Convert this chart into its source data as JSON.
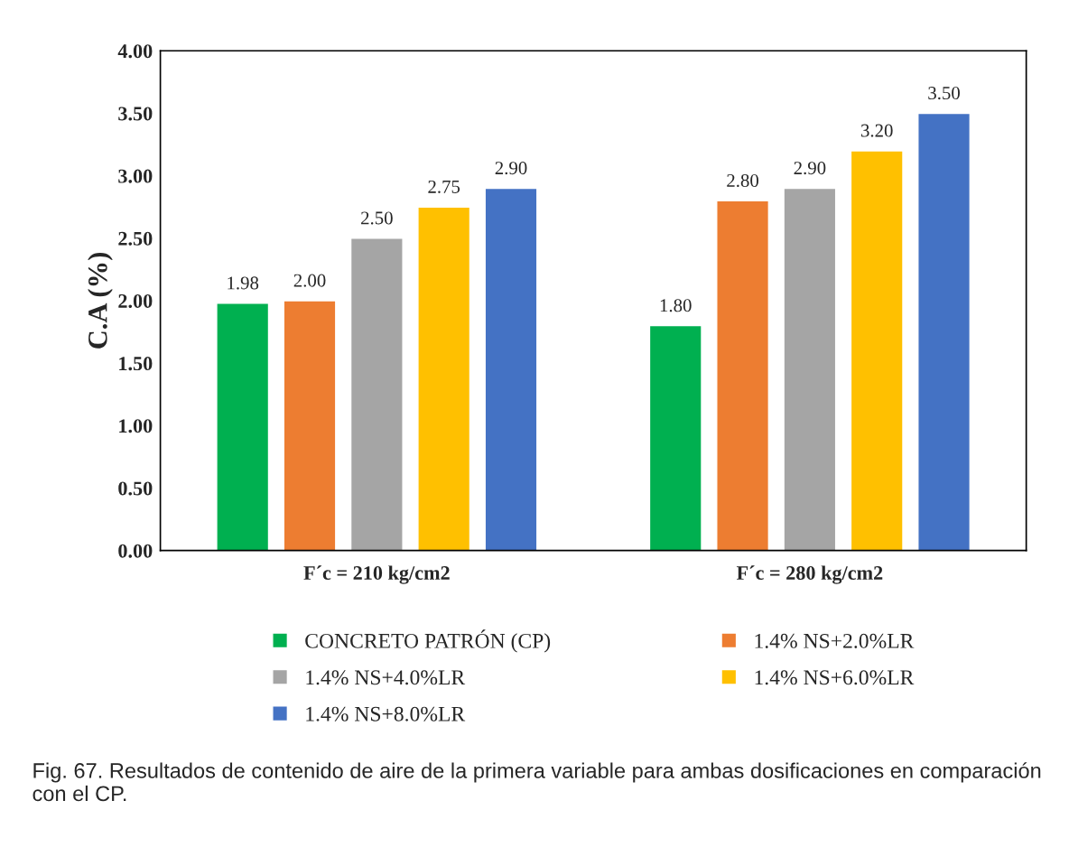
{
  "chart_data": {
    "type": "bar",
    "ylabel": "C.A (%)",
    "categories": [
      "F´c = 210 kg/cm2",
      "F´c = 280 kg/cm2"
    ],
    "series": [
      {
        "name": "CONCRETO PATRÓN (CP)",
        "color": "#00b050",
        "values": [
          1.98,
          1.8
        ],
        "value_labels": [
          "1.98",
          "1.80"
        ]
      },
      {
        "name": "1.4% NS+2.0%LR",
        "color": "#ed7d31",
        "values": [
          2.0,
          2.8
        ],
        "value_labels": [
          "2.00",
          "2.80"
        ]
      },
      {
        "name": "1.4% NS+4.0%LR",
        "color": "#a5a5a5",
        "values": [
          2.5,
          2.9
        ],
        "value_labels": [
          "2.50",
          "2.90"
        ]
      },
      {
        "name": "1.4% NS+6.0%LR",
        "color": "#ffc000",
        "values": [
          2.75,
          3.2
        ],
        "value_labels": [
          "2.75",
          "3.20"
        ]
      },
      {
        "name": "1.4% NS+8.0%LR",
        "color": "#4472c4",
        "values": [
          2.9,
          3.5
        ],
        "value_labels": [
          "2.90",
          "3.50"
        ]
      }
    ],
    "ylim": [
      0,
      4
    ],
    "yticks": [
      {
        "value": 0,
        "label": "0.00"
      },
      {
        "value": 0.5,
        "label": "0.50"
      },
      {
        "value": 1,
        "label": "1.00"
      },
      {
        "value": 1.5,
        "label": "1.50"
      },
      {
        "value": 2,
        "label": "2.00"
      },
      {
        "value": 2.5,
        "label": "2.50"
      },
      {
        "value": 3,
        "label": "3.00"
      },
      {
        "value": 3.5,
        "label": "3.50"
      },
      {
        "value": 4,
        "label": "4.00"
      }
    ],
    "grid": false,
    "legend": "bottom",
    "annotations": [
      "Fig. 67. Resultados de contenido de aire de la primera variable para ambas dosificaciones en comparación con el CP."
    ]
  }
}
